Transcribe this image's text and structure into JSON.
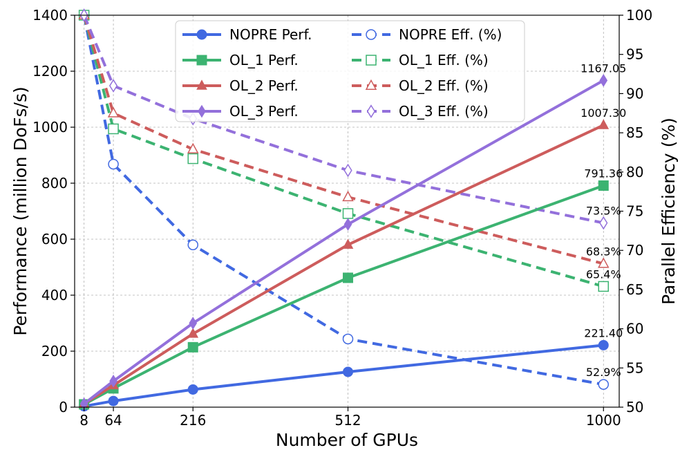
{
  "chart_data": {
    "type": "line",
    "title": "",
    "xlabel": "Number of GPUs",
    "ylabel": "Performance (million DoFs/s)",
    "y2label": "Parallel Efficiency (%)",
    "x": [
      8,
      64,
      216,
      512,
      1000
    ],
    "x_tick_labels": [
      "8",
      "64",
      "216",
      "512",
      "1000"
    ],
    "xlim": [
      -10,
      1030
    ],
    "ylim": [
      0,
      1400
    ],
    "y_ticks": [
      0,
      200,
      400,
      600,
      800,
      1000,
      1200,
      1400
    ],
    "y2lim": [
      50,
      100
    ],
    "y2_ticks": [
      50,
      55,
      60,
      65,
      70,
      75,
      80,
      85,
      90,
      95,
      100
    ],
    "grid": true,
    "legend_position": "top-center",
    "series": [
      {
        "name": "NOPRE Perf.",
        "axis": "left",
        "color": "#4169e1",
        "marker": "circle",
        "filled": true,
        "dashed": false,
        "values": [
          3.2,
          22,
          63,
          126,
          221.4
        ]
      },
      {
        "name": "OL_1 Perf.",
        "axis": "left",
        "color": "#3cb371",
        "marker": "square",
        "filled": true,
        "dashed": false,
        "values": [
          10,
          67,
          214,
          462,
          791.36
        ]
      },
      {
        "name": "OL_2 Perf.",
        "axis": "left",
        "color": "#cd5c5c",
        "marker": "triangle",
        "filled": true,
        "dashed": false,
        "values": [
          12,
          78,
          262,
          580,
          1007.3
        ]
      },
      {
        "name": "OL_3 Perf.",
        "axis": "left",
        "color": "#9370db",
        "marker": "diamond",
        "filled": true,
        "dashed": false,
        "values": [
          12,
          93,
          300,
          653,
          1167.05
        ]
      },
      {
        "name": "NOPRE Eff. (%)",
        "axis": "right",
        "color": "#4169e1",
        "marker": "circle",
        "filled": false,
        "dashed": true,
        "values": [
          100,
          81,
          70.7,
          58.7,
          52.9
        ]
      },
      {
        "name": "OL_1 Eff. (%)",
        "axis": "right",
        "color": "#3cb371",
        "marker": "square",
        "filled": false,
        "dashed": true,
        "values": [
          100,
          85.5,
          81.7,
          74.7,
          65.4
        ]
      },
      {
        "name": "OL_2 Eff. (%)",
        "axis": "right",
        "color": "#cd5c5c",
        "marker": "triangle",
        "filled": false,
        "dashed": true,
        "values": [
          100,
          87.5,
          82.9,
          76.8,
          68.3
        ]
      },
      {
        "name": "OL_3 Eff. (%)",
        "axis": "right",
        "color": "#9370db",
        "marker": "diamond",
        "filled": false,
        "dashed": true,
        "values": [
          100,
          91,
          86.8,
          80.2,
          73.5
        ]
      }
    ],
    "annotations": [
      {
        "text": "1167.05",
        "x": 1000,
        "y": 1167.05,
        "axis": "left"
      },
      {
        "text": "1007.30",
        "x": 1000,
        "y": 1007.3,
        "axis": "left"
      },
      {
        "text": "791.36",
        "x": 1000,
        "y": 791.36,
        "axis": "left"
      },
      {
        "text": "221.40",
        "x": 1000,
        "y": 221.4,
        "axis": "left"
      },
      {
        "text": "73.5%",
        "x": 1000,
        "y": 73.5,
        "axis": "right"
      },
      {
        "text": "68.3%",
        "x": 1000,
        "y": 68.3,
        "axis": "right"
      },
      {
        "text": "65.4%",
        "x": 1000,
        "y": 65.4,
        "axis": "right"
      },
      {
        "text": "52.9%",
        "x": 1000,
        "y": 52.9,
        "axis": "right"
      }
    ]
  }
}
